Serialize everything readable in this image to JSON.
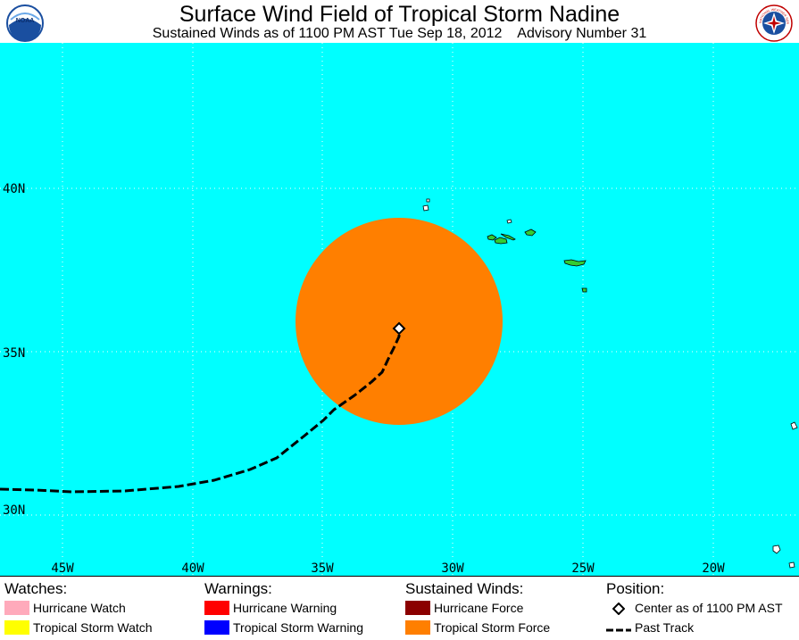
{
  "header": {
    "title": "Surface Wind Field of Tropical Storm Nadine",
    "subtitle": "Sustained Winds as of 1100 PM AST Tue Sep 18, 2012    Advisory Number 31",
    "logo_left_text": "NOAA",
    "logo_right_text": "NATIONAL WEATHER SERVICE"
  },
  "map": {
    "ocean_color": "#00ffff",
    "land_color": "#33cc33",
    "wind_field_color": "#ff7f00",
    "lat_labels": [
      "40N",
      "35N",
      "30N"
    ],
    "lon_labels": [
      "45W",
      "40W",
      "35W",
      "30W",
      "25W",
      "20W"
    ]
  },
  "legend": {
    "watches": {
      "heading": "Watches:",
      "items": [
        {
          "label": "Hurricane Watch",
          "color": "#ffaabb"
        },
        {
          "label": "Tropical Storm Watch",
          "color": "#ffff00"
        }
      ]
    },
    "warnings": {
      "heading": "Warnings:",
      "items": [
        {
          "label": "Hurricane Warning",
          "color": "#ff0000"
        },
        {
          "label": "Tropical Storm Warning",
          "color": "#0000ff"
        }
      ]
    },
    "winds": {
      "heading": "Sustained Winds:",
      "items": [
        {
          "label": "Hurricane Force",
          "color": "#8b0000"
        },
        {
          "label": "Tropical Storm Force",
          "color": "#ff7f00"
        }
      ]
    },
    "position": {
      "heading": "Position:",
      "center_label": "Center as of 1100 PM AST",
      "track_label": "Past Track"
    }
  }
}
